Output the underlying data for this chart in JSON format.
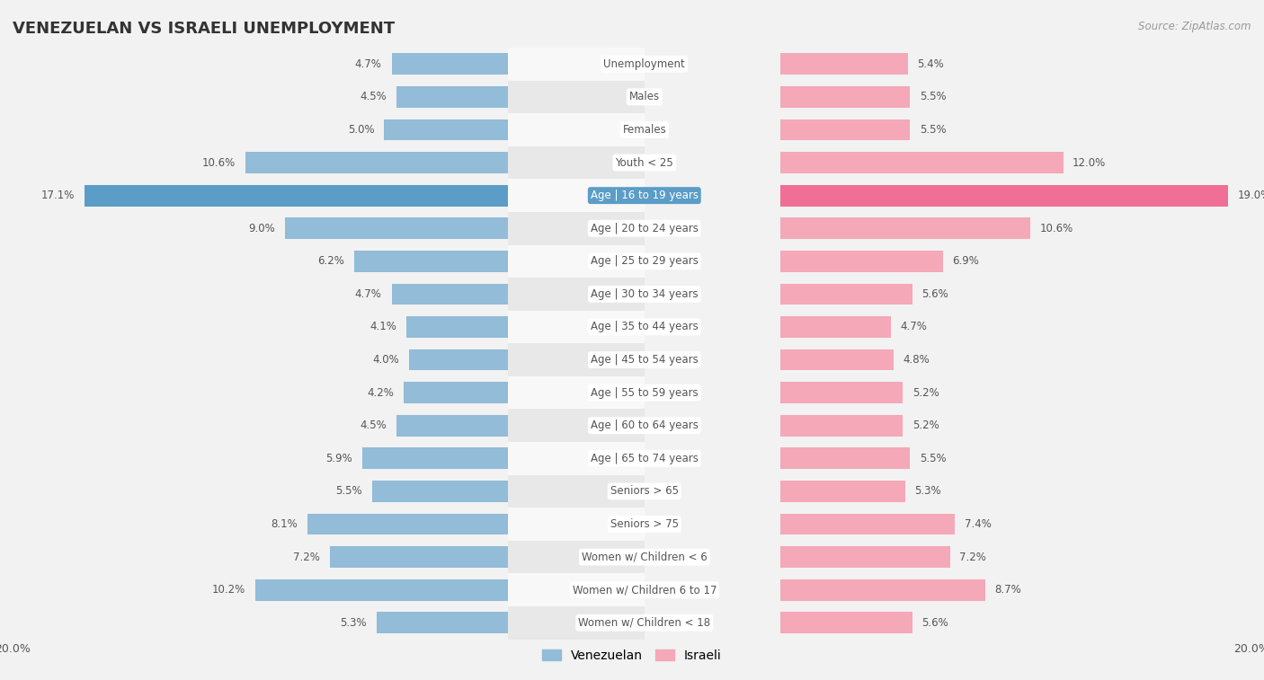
{
  "title": "VENEZUELAN VS ISRAELI UNEMPLOYMENT",
  "source": "Source: ZipAtlas.com",
  "categories": [
    "Unemployment",
    "Males",
    "Females",
    "Youth < 25",
    "Age | 16 to 19 years",
    "Age | 20 to 24 years",
    "Age | 25 to 29 years",
    "Age | 30 to 34 years",
    "Age | 35 to 44 years",
    "Age | 45 to 54 years",
    "Age | 55 to 59 years",
    "Age | 60 to 64 years",
    "Age | 65 to 74 years",
    "Seniors > 65",
    "Seniors > 75",
    "Women w/ Children < 6",
    "Women w/ Children 6 to 17",
    "Women w/ Children < 18"
  ],
  "venezuelan": [
    4.7,
    4.5,
    5.0,
    10.6,
    17.1,
    9.0,
    6.2,
    4.7,
    4.1,
    4.0,
    4.2,
    4.5,
    5.9,
    5.5,
    8.1,
    7.2,
    10.2,
    5.3
  ],
  "israeli": [
    5.4,
    5.5,
    5.5,
    12.0,
    19.0,
    10.6,
    6.9,
    5.6,
    4.7,
    4.8,
    5.2,
    5.2,
    5.5,
    5.3,
    7.4,
    7.2,
    8.7,
    5.6
  ],
  "venezuelan_color": "#92bcd8",
  "israeli_color": "#f4a8b8",
  "highlight_row": 4,
  "venezuelan_highlight": "#5b9dc7",
  "israeli_highlight": "#ef6f96",
  "background_color": "#f2f2f2",
  "row_bg_light": "#f8f8f8",
  "row_bg_dark": "#e8e8e8",
  "axis_limit": 20.0,
  "label_color": "#555555",
  "value_color": "#555555",
  "legend_venezuelan": "Venezuelan",
  "legend_israeli": "Israeli",
  "title_fontsize": 13,
  "label_fontsize": 8.5,
  "value_fontsize": 8.5
}
